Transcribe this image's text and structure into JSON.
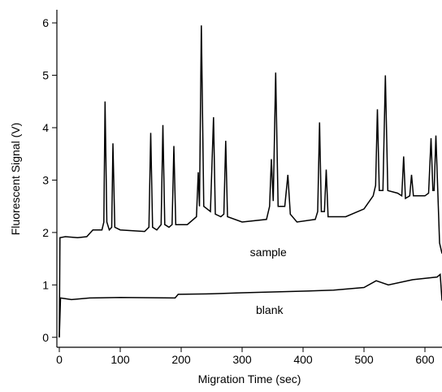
{
  "chart_data": {
    "type": "line",
    "xlabel": "Migration Time (sec)",
    "ylabel": "Fluorescent Signal (V)",
    "xlim": [
      -4,
      628
    ],
    "ylim": [
      -0.19,
      6.25
    ],
    "xticks": [
      0,
      100,
      200,
      300,
      400,
      500,
      600
    ],
    "yticks": [
      0,
      1,
      2,
      3,
      4,
      5,
      6
    ],
    "series": [
      {
        "name": "sample",
        "color": "#000000",
        "x": [
          0,
          1,
          10,
          30,
          45,
          55,
          70,
          73,
          75,
          78,
          82,
          86,
          88,
          91,
          100,
          140,
          147,
          150,
          153,
          160,
          167,
          170,
          173,
          180,
          185,
          188,
          191,
          210,
          225,
          228,
          230,
          233,
          237,
          248,
          253,
          256,
          265,
          270,
          273,
          276,
          300,
          340,
          345,
          348,
          351,
          355,
          359,
          370,
          375,
          379,
          390,
          420,
          424,
          427,
          430,
          435,
          438,
          441,
          470,
          500,
          515,
          519,
          522,
          525,
          531,
          535,
          539,
          555,
          562,
          565,
          568,
          575,
          578,
          581,
          600,
          606,
          610,
          613,
          615,
          618,
          621,
          624,
          628
        ],
        "values": [
          0,
          1.9,
          1.92,
          1.9,
          1.92,
          2.05,
          2.05,
          2.2,
          4.5,
          2.2,
          2.05,
          2.1,
          3.7,
          2.1,
          2.05,
          2.02,
          2.1,
          3.9,
          2.1,
          2.05,
          2.15,
          4.05,
          2.15,
          2.1,
          2.15,
          3.65,
          2.15,
          2.15,
          2.3,
          3.15,
          2.5,
          5.95,
          2.5,
          2.4,
          4.2,
          2.35,
          2.3,
          2.35,
          3.75,
          2.3,
          2.2,
          2.25,
          2.5,
          3.4,
          2.6,
          5.05,
          2.5,
          2.5,
          3.1,
          2.35,
          2.2,
          2.25,
          2.4,
          4.1,
          2.4,
          2.4,
          3.2,
          2.3,
          2.3,
          2.45,
          2.7,
          2.9,
          4.35,
          2.8,
          2.8,
          5.0,
          2.8,
          2.75,
          2.7,
          3.45,
          2.65,
          2.7,
          3.1,
          2.7,
          2.7,
          2.75,
          3.8,
          2.8,
          2.8,
          3.85,
          2.8,
          1.8,
          1.6
        ]
      },
      {
        "name": "blank",
        "color": "#000000",
        "x": [
          0,
          2,
          20,
          50,
          100,
          190,
          195,
          250,
          300,
          400,
          450,
          500,
          520,
          540,
          580,
          620,
          625,
          628
        ],
        "values": [
          0,
          0.75,
          0.72,
          0.75,
          0.76,
          0.75,
          0.82,
          0.83,
          0.85,
          0.88,
          0.9,
          0.95,
          1.08,
          1.0,
          1.1,
          1.15,
          1.2,
          0.7
        ]
      }
    ]
  }
}
